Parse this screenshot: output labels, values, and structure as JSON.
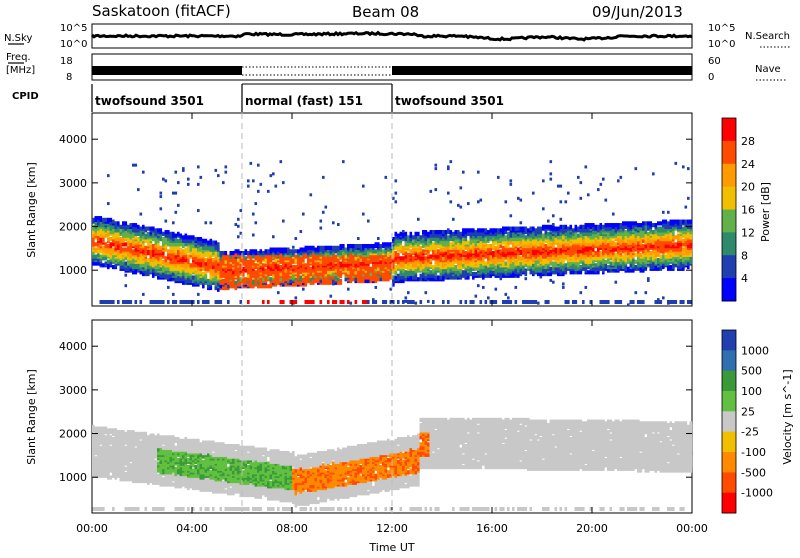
{
  "header": {
    "station": "Saskatoon (fitACF)",
    "beam": "Beam 08",
    "date": "09/Jun/2013"
  },
  "top_panels": {
    "nsky_label": "N.Sky",
    "nsky_ticks": [
      "10^5",
      "10^0"
    ],
    "nsearch_label": "N.Search",
    "nsearch_ticks": [
      "10^5",
      "10^0"
    ],
    "freq_label_1": "Freq.",
    "freq_label_2": "[MHz]",
    "freq_ticks": [
      "18",
      "8"
    ],
    "nave_label": "Nave",
    "nave_ticks": [
      "60",
      "0"
    ],
    "cpid_label": "CPID",
    "cpid_segments": [
      {
        "label": "twofsound 3501",
        "start": 0,
        "end": 6
      },
      {
        "label": "normal (fast) 151",
        "start": 6,
        "end": 12
      },
      {
        "label": "twofsound 3501",
        "start": 12,
        "end": 24
      }
    ]
  },
  "xaxis": {
    "label": "Time UT",
    "ticks": [
      "00:00",
      "04:00",
      "08:00",
      "12:00",
      "16:00",
      "20:00",
      "00:00"
    ],
    "range_hours": [
      0,
      24
    ]
  },
  "power_panel": {
    "ylabel": "Slant Range [km]",
    "yticks": [
      "4000",
      "3000",
      "2000",
      "1000"
    ],
    "colorbar_label": "Power [dB]",
    "colorbar_ticks": [
      "28",
      "24",
      "20",
      "16",
      "12",
      "8",
      "4"
    ],
    "colors": [
      "#ff0000",
      "#ff4b00",
      "#ff9a00",
      "#f0c000",
      "#62b04a",
      "#2e8a6a",
      "#1f3fb0",
      "#0000ff"
    ]
  },
  "velocity_panel": {
    "ylabel": "Slant Range [km]",
    "yticks": [
      "4000",
      "3000",
      "2000",
      "1000"
    ],
    "colorbar_label": "Velocity [m s^-1]",
    "colorbar_ticks": [
      "1000",
      "500",
      "100",
      "25",
      "-25",
      "-100",
      "-500",
      "-1000"
    ],
    "colors": [
      "#1f3fb0",
      "#2e6fb0",
      "#3a9a3a",
      "#62c040",
      "#c8c8c8",
      "#f0c000",
      "#ff8a00",
      "#ff4b00",
      "#ff0000"
    ]
  },
  "chart_data": [
    {
      "type": "heatmap",
      "title": "Saskatoon (fitACF) Beam 08 09/Jun/2013",
      "quantity": "Power",
      "xlabel": "Time UT",
      "ylabel": "Slant Range [km]",
      "xlim": [
        0,
        24
      ],
      "ylim": [
        180,
        4600
      ],
      "colorbar_range": [
        0,
        30
      ],
      "colorbar_label": "Power [dB]",
      "bands": [
        {
          "x": [
            0,
            5
          ],
          "range_center": [
            1700,
            1100
          ],
          "value": 24
        },
        {
          "x": [
            5,
            12
          ],
          "range_center": [
            1000,
            1200
          ],
          "value": 28
        },
        {
          "x": [
            12,
            24
          ],
          "range_center": [
            1300,
            1600
          ],
          "value": 18
        }
      ]
    },
    {
      "type": "heatmap",
      "title": "Saskatoon (fitACF) Beam 08 09/Jun/2013",
      "quantity": "Velocity",
      "xlabel": "Time UT",
      "ylabel": "Slant Range [km]",
      "xlim": [
        0,
        24
      ],
      "ylim": [
        180,
        4600
      ],
      "colorbar_label": "Velocity [m s^-1]",
      "bands": [
        {
          "x": [
            0,
            8
          ],
          "range_center": [
            1600,
            1000
          ],
          "value": 150
        },
        {
          "x": [
            8,
            13
          ],
          "range_center": [
            900,
            1400
          ],
          "value": -500
        },
        {
          "x": [
            13,
            24
          ],
          "range_center": [
            1800,
            1700
          ],
          "value": 0
        }
      ]
    }
  ]
}
